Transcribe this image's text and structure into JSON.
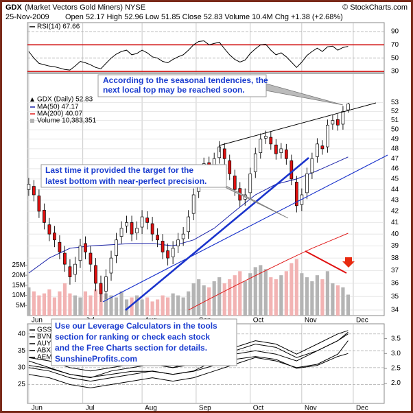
{
  "header": {
    "symbol": "GDX",
    "name": "(Market Vectors Gold Miners) NYSE",
    "date": "25-Nov-2009",
    "quote": "Open 52.17 High 52.96 Low 51.85 Close 52.83 Volume 10.4M Chg +1.38 (+2.68%)",
    "source": "© StockCharts.com"
  },
  "annotations": [
    {
      "lines": [
        "According to the seasonal tendencies, the",
        "next local top may be reached soon."
      ]
    },
    {
      "lines": [
        "Last time it provided the target for the",
        "latest bottom with near-perfect precision."
      ]
    },
    {
      "lines": [
        "Use our Leverage Calculators in the tools",
        "section for ranking or check each stock",
        "and the Free Charts section for details.",
        "SunshineProfits.com"
      ]
    }
  ],
  "chart_data": [
    {
      "type": "line",
      "xlim": [
        -0.5,
        138
      ],
      "ylim": [
        28,
        103.4
      ],
      "yticks": [
        30,
        50,
        70,
        90
      ],
      "grid": true,
      "reference_lines": [
        70,
        30
      ],
      "reference_color": "#d01010",
      "x": [
        0,
        2,
        4,
        6,
        8,
        10,
        12,
        14,
        16,
        18,
        20,
        22,
        24,
        26,
        28,
        30,
        32,
        34,
        36,
        38,
        40,
        42,
        44,
        46,
        48,
        50,
        52,
        54,
        56,
        58,
        60,
        62,
        64,
        66,
        68,
        70,
        72,
        74,
        76,
        78,
        80,
        82,
        84,
        86,
        88,
        90,
        92,
        94,
        96,
        98,
        100,
        102,
        104,
        106,
        108,
        110,
        112,
        114,
        116,
        118,
        120,
        122,
        124
      ],
      "series": [
        {
          "name": "RSI(14) 67.66",
          "color": "#000000",
          "values": [
            60,
            50,
            42,
            40,
            38,
            37,
            35,
            33,
            32,
            38,
            45,
            43,
            40,
            36,
            34,
            42,
            50,
            56,
            60,
            62,
            55,
            57,
            62,
            58,
            52,
            50,
            45,
            43,
            48,
            52,
            55,
            62,
            70,
            75,
            76,
            70,
            72,
            74,
            64,
            55,
            48,
            44,
            47,
            57,
            64,
            70,
            71,
            62,
            55,
            58,
            52,
            44,
            36,
            44,
            54,
            60,
            65,
            60,
            67,
            68,
            62,
            66,
            67.66
          ]
        }
      ]
    },
    {
      "type": "candlestick",
      "name": "GDX (Daily) 52.83",
      "log_scale": true,
      "grid": true,
      "xlim": [
        -0.5,
        138
      ],
      "ylim": [
        33.6,
        56.4
      ],
      "yticks": [
        34,
        35,
        36,
        37,
        38,
        39,
        40,
        41,
        42,
        43,
        44,
        45,
        46,
        47,
        48,
        49,
        50,
        51,
        52,
        53
      ],
      "xticks": [
        {
          "value": 0,
          "label": "Jun"
        },
        {
          "value": 21,
          "label": "Jul"
        },
        {
          "value": 44,
          "label": "Aug"
        },
        {
          "value": 65,
          "label": "Sep"
        },
        {
          "value": 86,
          "label": "Oct"
        },
        {
          "value": 106,
          "label": "Nov"
        },
        {
          "value": 126,
          "label": "Dec"
        }
      ],
      "up_color": "#ffffff",
      "down_color": "#e01010",
      "volume_up_color": "#b4b4b4",
      "volume_down_color": "#f2b3b3",
      "x": [
        0,
        2,
        4,
        6,
        8,
        10,
        12,
        14,
        16,
        18,
        20,
        22,
        24,
        26,
        28,
        30,
        32,
        34,
        36,
        38,
        40,
        42,
        44,
        46,
        48,
        50,
        52,
        54,
        56,
        58,
        60,
        62,
        64,
        66,
        68,
        70,
        72,
        74,
        76,
        78,
        80,
        82,
        84,
        86,
        88,
        90,
        92,
        94,
        96,
        98,
        100,
        102,
        104,
        106,
        108,
        110,
        112,
        114,
        116,
        118,
        120,
        122,
        124
      ],
      "open": [
        44.0,
        44.3,
        43.4,
        42.1,
        40.8,
        40.1,
        39.3,
        38.4,
        37.3,
        36.7,
        37.8,
        39.2,
        38.4,
        37.4,
        36.0,
        35.4,
        36.8,
        38.2,
        39.8,
        40.7,
        41.0,
        40.1,
        40.6,
        41.4,
        40.9,
        39.9,
        39.4,
        38.6,
        38.1,
        39.0,
        39.6,
        40.2,
        41.8,
        43.8,
        45.7,
        46.6,
        46.2,
        47.1,
        48.0,
        46.8,
        45.3,
        44.1,
        43.1,
        43.7,
        45.7,
        47.6,
        49.1,
        49.2,
        48.4,
        47.6,
        47.9,
        46.8,
        44.7,
        42.6,
        43.7,
        45.6,
        47.2,
        48.3,
        48.2,
        50.6,
        51.1,
        50.6,
        52.17
      ],
      "high": [
        45.1,
        44.9,
        44.0,
        42.7,
        41.4,
        40.7,
        39.9,
        39.0,
        37.9,
        38.1,
        39.6,
        39.8,
        39.0,
        38.0,
        36.6,
        37.1,
        38.6,
        40.1,
        41.1,
        41.6,
        41.6,
        41.1,
        42.1,
        42.0,
        41.5,
        40.5,
        40.0,
        39.2,
        39.4,
        40.1,
        40.6,
        42.1,
        44.1,
        46.1,
        47.1,
        47.2,
        47.6,
        48.8,
        48.6,
        47.4,
        45.9,
        44.7,
        44.1,
        46.1,
        48.1,
        49.6,
        49.9,
        49.8,
        49.0,
        48.6,
        48.5,
        47.4,
        45.3,
        44.1,
        46.1,
        47.6,
        49.1,
        48.9,
        51.1,
        51.6,
        51.7,
        52.6,
        52.96
      ],
      "low": [
        43.4,
        42.9,
        41.4,
        40.4,
        39.4,
        38.9,
        37.9,
        36.9,
        35.9,
        36.1,
        37.2,
        37.9,
        36.9,
        35.4,
        34.6,
        34.8,
        36.2,
        37.6,
        39.2,
        40.1,
        39.4,
        39.5,
        40.0,
        40.4,
        39.4,
        38.9,
        37.9,
        37.4,
        37.5,
        38.4,
        39.0,
        39.6,
        41.2,
        43.2,
        45.1,
        45.4,
        45.6,
        46.5,
        46.4,
        44.9,
        43.4,
        42.4,
        42.5,
        43.1,
        45.1,
        47.0,
        48.5,
        47.9,
        46.9,
        47.0,
        46.4,
        44.4,
        41.9,
        42.0,
        43.1,
        45.0,
        46.6,
        47.4,
        47.6,
        50.0,
        49.9,
        50.0,
        51.85
      ],
      "close": [
        44.5,
        43.5,
        42.0,
        41.0,
        40.0,
        39.5,
        38.5,
        37.5,
        36.5,
        37.5,
        39.0,
        38.5,
        37.5,
        36.0,
        35.2,
        36.5,
        38.0,
        39.5,
        40.5,
        41.0,
        40.0,
        40.5,
        41.5,
        41.0,
        40.0,
        39.5,
        38.5,
        38.0,
        38.8,
        39.5,
        40.0,
        41.5,
        43.5,
        45.5,
        46.5,
        46.0,
        47.0,
        48.2,
        47.0,
        45.5,
        44.0,
        43.0,
        43.5,
        45.5,
        47.5,
        49.0,
        49.3,
        48.5,
        47.5,
        48.0,
        47.0,
        45.0,
        42.5,
        43.5,
        45.5,
        47.0,
        48.5,
        48.0,
        50.5,
        51.0,
        50.5,
        52.0,
        52.83
      ],
      "volume_name": "Volume 10,383,351",
      "volume": [
        14000000,
        12000000,
        10000000,
        11000000,
        13000000,
        9000000,
        12000000,
        16000000,
        11000000,
        10000000,
        9000000,
        12000000,
        10000000,
        13000000,
        15000000,
        11000000,
        10000000,
        9000000,
        12000000,
        8000000,
        9000000,
        10000000,
        8000000,
        9000000,
        7000000,
        8000000,
        10000000,
        9000000,
        11000000,
        10000000,
        9000000,
        12000000,
        16000000,
        18000000,
        15000000,
        14000000,
        17000000,
        19000000,
        16000000,
        18000000,
        20000000,
        22000000,
        17000000,
        21000000,
        24000000,
        25000000,
        23000000,
        19000000,
        18000000,
        20000000,
        22000000,
        26000000,
        28000000,
        21000000,
        19000000,
        17000000,
        20000000,
        18000000,
        22000000,
        16000000,
        15000000,
        14000000,
        10383351
      ],
      "y2lim": [
        0,
        120000000
      ],
      "y2ticks": [
        {
          "value": 5000000,
          "label": "5M"
        },
        {
          "value": 10000000,
          "label": "10M"
        },
        {
          "value": 15000000,
          "label": "15M"
        },
        {
          "value": 20000000,
          "label": "20M"
        },
        {
          "value": 25000000,
          "label": "25M"
        }
      ],
      "series": [
        {
          "name": "MA(50) 47.17",
          "color": "#1a22a8",
          "x": [
            0,
            8,
            16,
            24,
            32,
            40,
            48,
            56,
            64,
            72,
            80,
            88,
            96,
            104,
            112,
            120,
            124
          ],
          "values": [
            36.8,
            38.0,
            38.8,
            39.0,
            39.1,
            39.2,
            39.2,
            39.0,
            39.5,
            40.5,
            42.0,
            43.5,
            44.5,
            45.0,
            45.8,
            46.7,
            47.17
          ]
        },
        {
          "name": "MA(200) 40.07",
          "color": "#e01a1a",
          "x": [
            62,
            70,
            80,
            90,
            100,
            110,
            120,
            124
          ],
          "values": [
            34.0,
            34.8,
            35.8,
            36.8,
            37.8,
            38.8,
            39.7,
            40.07
          ]
        }
      ]
    },
    {
      "type": "line",
      "grid": true,
      "xlim": [
        -0.5,
        138
      ],
      "ylim": [
        19.4,
        43
      ],
      "yticks": [
        25,
        30,
        35,
        40
      ],
      "y2lim": [
        1.32,
        4.0
      ],
      "y2ticks": [
        {
          "value": 2,
          "label": "2.0"
        },
        2.5,
        {
          "value": 3,
          "label": "3.0"
        },
        3.5
      ],
      "xticks": [
        {
          "value": 0,
          "label": "Jun"
        },
        {
          "value": 21,
          "label": "Jul"
        },
        {
          "value": 44,
          "label": "Aug"
        },
        {
          "value": 65,
          "label": "Sep"
        },
        {
          "value": 86,
          "label": "Oct"
        },
        {
          "value": 106,
          "label": "Nov"
        },
        {
          "value": 126,
          "label": "Dec"
        }
      ],
      "x": [
        0,
        8,
        16,
        24,
        32,
        40,
        48,
        56,
        64,
        72,
        80,
        88,
        96,
        104,
        112,
        120,
        124
      ],
      "series": [
        {
          "name": "GSS",
          "color": "#000000",
          "axis": "y2",
          "values": [
            2.6,
            2.5,
            2.3,
            2.2,
            2.3,
            2.4,
            2.4,
            2.3,
            2.4,
            2.6,
            2.8,
            2.9,
            2.8,
            2.5,
            2.6,
            2.9,
            3.0
          ]
        },
        {
          "name": "BVN",
          "color": "#000000",
          "values": [
            32,
            30,
            28,
            27,
            29,
            30,
            31,
            30,
            32,
            34,
            36,
            38,
            37,
            34,
            37,
            40,
            41
          ]
        },
        {
          "name": "AUY",
          "color": "#000000",
          "values": [
            30,
            29,
            27,
            26,
            27,
            28,
            29,
            28,
            29,
            32,
            34,
            35,
            34,
            32,
            35,
            38,
            40
          ]
        },
        {
          "name": "ABX",
          "color": "#000000",
          "values": [
            33,
            32,
            30,
            29,
            30,
            31,
            31,
            30,
            31,
            33,
            35,
            37,
            36,
            33,
            35,
            38,
            40.5
          ]
        },
        {
          "name": "AEM",
          "color": "#000000",
          "values": [
            28,
            27,
            25,
            24,
            25,
            26,
            27,
            26,
            27,
            29,
            31,
            33,
            32,
            30,
            31,
            34,
            38
          ]
        }
      ]
    }
  ]
}
